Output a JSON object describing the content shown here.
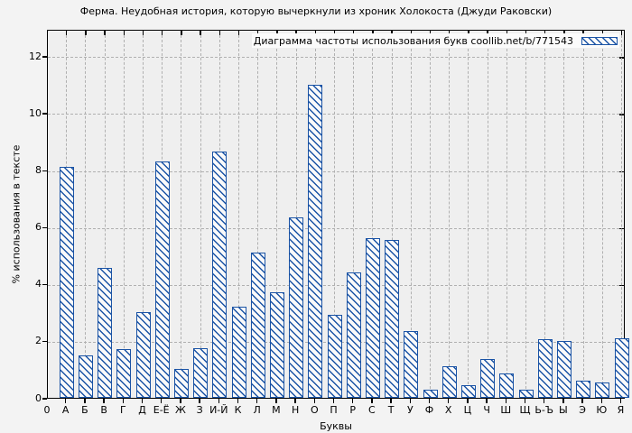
{
  "chart_data": {
    "type": "bar",
    "title": "Ферма. Неудобная история, которую вычеркнули из хроник Холокоста (Джуди Раковски)",
    "legend": "Диаграмма частоты использования букв coollib.net/b/771543",
    "legend_position": "top-right",
    "xlabel": "Буквы",
    "ylabel": "% использования в тексте",
    "origin_label": "0",
    "ylim": [
      0,
      13
    ],
    "yticks": [
      0,
      2,
      4,
      6,
      8,
      10,
      12
    ],
    "grid": true,
    "bar_color": "#1a53a5",
    "bar_style": "diagonal-hatch",
    "categories": [
      "А",
      "Б",
      "В",
      "Г",
      "Д",
      "Е-Ё",
      "Ж",
      "З",
      "И-Й",
      "К",
      "Л",
      "М",
      "Н",
      "О",
      "П",
      "Р",
      "С",
      "Т",
      "У",
      "Ф",
      "Х",
      "Ц",
      "Ч",
      "Ш",
      "Щ",
      "Ь-Ъ",
      "Ы",
      "Э",
      "Ю",
      "Я"
    ],
    "values": [
      8.1,
      1.5,
      4.55,
      1.7,
      3.0,
      8.3,
      1.0,
      1.75,
      8.65,
      3.2,
      5.1,
      3.7,
      6.35,
      11.0,
      2.9,
      4.4,
      5.6,
      5.55,
      2.35,
      0.3,
      1.1,
      0.45,
      1.35,
      0.85,
      0.3,
      2.05,
      2.0,
      0.6,
      0.55,
      2.1
    ]
  }
}
